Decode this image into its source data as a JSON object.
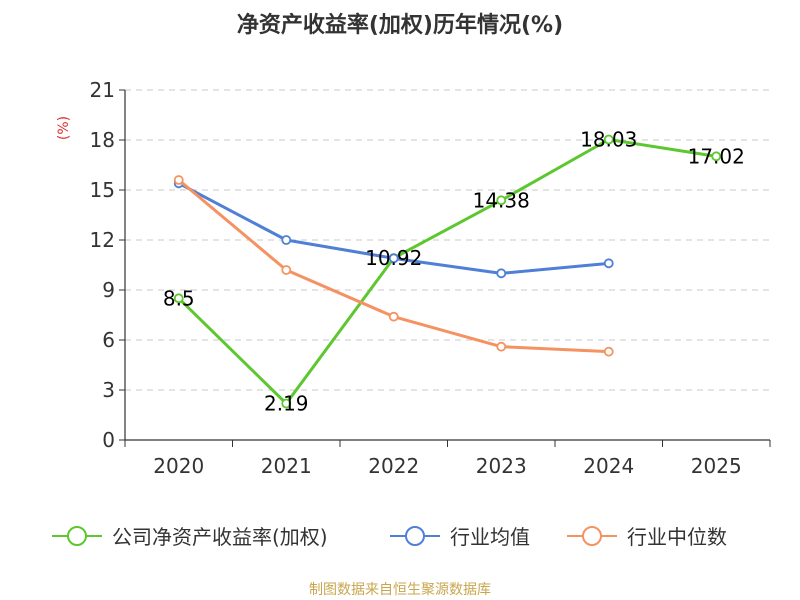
{
  "chart_data": {
    "type": "line",
    "title": "净资产收益率(加权)历年情况(%)",
    "ylabel": "(%)",
    "xlabel": "",
    "categories": [
      "2020",
      "2021",
      "2022",
      "2023",
      "2024",
      "2025"
    ],
    "yticks": [
      0,
      3,
      6,
      9,
      12,
      15,
      18,
      21
    ],
    "ylim": [
      0,
      21
    ],
    "grid": true,
    "legend_position": "bottom",
    "series": [
      {
        "name": "公司净资产收益率(加权)",
        "color": "#5cc72e",
        "values": [
          8.5,
          2.19,
          10.92,
          14.38,
          18.03,
          17.02
        ],
        "labels": [
          "8.5",
          "2.19",
          "10.92",
          "14.38",
          "18.03",
          "17.02"
        ]
      },
      {
        "name": "行业均值",
        "color": "#4f7fd6",
        "values": [
          15.4,
          12.0,
          10.9,
          10.0,
          10.6,
          null
        ]
      },
      {
        "name": "行业中位数",
        "color": "#f59261",
        "values": [
          15.6,
          10.2,
          7.4,
          5.6,
          5.3,
          null
        ]
      }
    ],
    "source": "制图数据来自恒生聚源数据库"
  }
}
